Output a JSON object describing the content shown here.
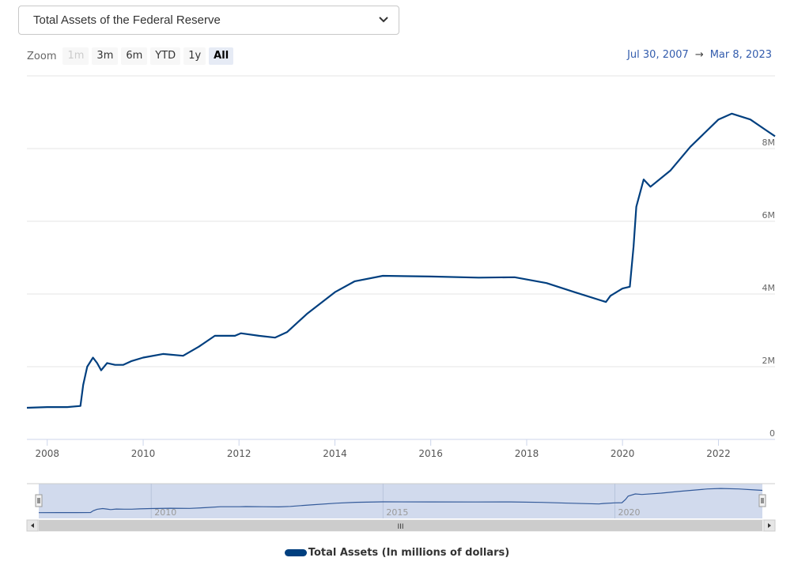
{
  "selector": {
    "value": "Total Assets of the Federal Reserve"
  },
  "zoom": {
    "label": "Zoom",
    "buttons": [
      {
        "label": "1m",
        "state": "disabled"
      },
      {
        "label": "3m",
        "state": "normal"
      },
      {
        "label": "6m",
        "state": "normal"
      },
      {
        "label": "YTD",
        "state": "normal"
      },
      {
        "label": "1y",
        "state": "normal"
      },
      {
        "label": "All",
        "state": "active"
      }
    ]
  },
  "range": {
    "from": "Jul 30, 2007",
    "arrow": "→",
    "to": "Mar 8, 2023"
  },
  "colors": {
    "series": "#003f7f",
    "navigator_fill": "#ccd6eb",
    "grid": "#e6e6e6"
  },
  "chart_data": {
    "type": "line",
    "title": "",
    "xlabel": "",
    "ylabel": "",
    "x_range": [
      "2007-07-30",
      "2023-03-08"
    ],
    "ylim": [
      0,
      10000000
    ],
    "yticks": [
      0,
      2000000,
      4000000,
      6000000,
      8000000
    ],
    "ytick_labels": [
      "0",
      "2M",
      "4M",
      "6M",
      "8M"
    ],
    "xtick_labels": [
      "2008",
      "2010",
      "2012",
      "2014",
      "2016",
      "2018",
      "2020",
      "2022"
    ],
    "grid": true,
    "legend": "bottom",
    "series": [
      {
        "name": "Total Assets (In millions of dollars)",
        "points": [
          [
            "2007-07-30",
            870000
          ],
          [
            "2008-01-01",
            890000
          ],
          [
            "2008-06-01",
            890000
          ],
          [
            "2008-09-10",
            920000
          ],
          [
            "2008-10-01",
            1500000
          ],
          [
            "2008-11-01",
            2000000
          ],
          [
            "2008-12-15",
            2250000
          ],
          [
            "2009-01-15",
            2100000
          ],
          [
            "2009-02-15",
            1900000
          ],
          [
            "2009-04-01",
            2100000
          ],
          [
            "2009-06-01",
            2050000
          ],
          [
            "2009-08-01",
            2050000
          ],
          [
            "2009-10-01",
            2150000
          ],
          [
            "2010-01-01",
            2250000
          ],
          [
            "2010-06-01",
            2350000
          ],
          [
            "2010-11-01",
            2300000
          ],
          [
            "2011-03-01",
            2550000
          ],
          [
            "2011-07-01",
            2850000
          ],
          [
            "2011-12-01",
            2850000
          ],
          [
            "2012-01-15",
            2920000
          ],
          [
            "2012-06-01",
            2850000
          ],
          [
            "2012-10-01",
            2800000
          ],
          [
            "2013-01-01",
            2950000
          ],
          [
            "2013-06-01",
            3450000
          ],
          [
            "2014-01-01",
            4050000
          ],
          [
            "2014-06-01",
            4350000
          ],
          [
            "2015-01-01",
            4500000
          ],
          [
            "2016-01-01",
            4480000
          ],
          [
            "2017-01-01",
            4450000
          ],
          [
            "2017-10-01",
            4460000
          ],
          [
            "2018-06-01",
            4300000
          ],
          [
            "2019-01-01",
            4050000
          ],
          [
            "2019-08-28",
            3780000
          ],
          [
            "2019-10-01",
            3950000
          ],
          [
            "2020-01-01",
            4150000
          ],
          [
            "2020-02-26",
            4200000
          ],
          [
            "2020-03-25",
            5300000
          ],
          [
            "2020-04-15",
            6400000
          ],
          [
            "2020-06-10",
            7150000
          ],
          [
            "2020-08-01",
            6950000
          ],
          [
            "2021-01-01",
            7400000
          ],
          [
            "2021-06-01",
            8050000
          ],
          [
            "2022-01-01",
            8800000
          ],
          [
            "2022-04-13",
            8960000
          ],
          [
            "2022-09-01",
            8800000
          ],
          [
            "2023-01-01",
            8500000
          ],
          [
            "2023-03-08",
            8340000
          ]
        ]
      }
    ]
  },
  "navigator": {
    "xtick_labels": [
      "2010",
      "2015",
      "2020"
    ],
    "scroll_grip": "III"
  },
  "legend": {
    "label": "Total Assets (In millions of dollars)"
  }
}
